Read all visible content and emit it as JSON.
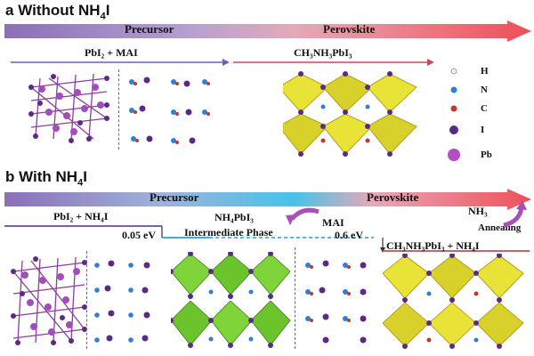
{
  "panel_a": {
    "letter": "a",
    "title": "Without NH",
    "title_sub": "4",
    "title_end": "I",
    "bar_left": "Precursor",
    "bar_right": "Perovskite",
    "reactants": "PbI₂ + MAI",
    "product": "CH₃NH₃PbI₃"
  },
  "panel_b": {
    "letter": "b",
    "title": "With NH",
    "title_sub": "4",
    "title_end": "I",
    "bar_left": "Precursor",
    "bar_right": "Perovskite",
    "reactants": "PbI₂ + NH₄I",
    "intermediate_formula": "NH₄PbI₃",
    "intermediate_label": "Intermediate Phase",
    "energy_1": "0.05 eV",
    "energy_2": "0.6 eV",
    "mai": "MAI",
    "nh3": "NH₃",
    "annealing": "Annealing",
    "product": "CH₃NH₃PbI₃ + NH₄I"
  },
  "legend": {
    "items": [
      {
        "symbol": "H",
        "color": "#f2f2f2"
      },
      {
        "symbol": "N",
        "color": "#2f7fd6"
      },
      {
        "symbol": "C",
        "color": "#c0392b"
      },
      {
        "symbol": "I",
        "color": "#5b2a86"
      },
      {
        "symbol": "Pb",
        "color": "#b04fc0"
      }
    ]
  }
}
